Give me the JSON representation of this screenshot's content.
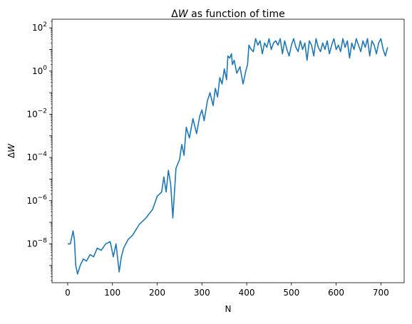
{
  "chart_data": {
    "type": "line",
    "title_prefix": "Δ",
    "title_var": "W",
    "title_suffix": " as function of time",
    "xlabel": "N",
    "ylabel_prefix": "Δ",
    "ylabel_var": "W",
    "xlim": [
      -35,
      752
    ],
    "ylim_exp": [
      -9.8,
      2.4
    ],
    "yscale": "log",
    "x_ticks": [
      0,
      100,
      200,
      300,
      400,
      500,
      600,
      700
    ],
    "y_tick_exponents": [
      -8,
      -6,
      -4,
      -2,
      0,
      2
    ],
    "grid": false,
    "legend": "none",
    "color": "#1f77b4",
    "series": [
      {
        "x": [
          0,
          6,
          12,
          15,
          18,
          22,
          28,
          35,
          42,
          50,
          58,
          66,
          75,
          85,
          95,
          102,
          108,
          115,
          120,
          125,
          135,
          145,
          160,
          175,
          190,
          200,
          210,
          215,
          220,
          225,
          230,
          235,
          242,
          250,
          255,
          260,
          265,
          272,
          280,
          288,
          295,
          300,
          305,
          312,
          318,
          325,
          330,
          335,
          340,
          345,
          350,
          355,
          358,
          362,
          366,
          368,
          372,
          378,
          385,
          392,
          398,
          402,
          405,
          410,
          415,
          420,
          425,
          430,
          435,
          440,
          445,
          450,
          455,
          460,
          465,
          470,
          475,
          480,
          485,
          490,
          495,
          500,
          505,
          510,
          515,
          520,
          525,
          530,
          535,
          540,
          545,
          550,
          555,
          560,
          565,
          570,
          575,
          580,
          585,
          590,
          595,
          600,
          605,
          610,
          615,
          620,
          625,
          630,
          635,
          640,
          645,
          650,
          655,
          660,
          665,
          670,
          675,
          680,
          685,
          690,
          695,
          700,
          705,
          710,
          715
        ],
        "y_exp": [
          -8.0,
          -8.0,
          -7.4,
          -7.8,
          -9.0,
          -9.4,
          -9.0,
          -8.7,
          -8.8,
          -8.5,
          -8.6,
          -8.2,
          -8.3,
          -8.0,
          -7.9,
          -8.6,
          -8.0,
          -9.3,
          -8.6,
          -8.2,
          -7.8,
          -7.6,
          -7.1,
          -6.8,
          -6.4,
          -5.8,
          -5.6,
          -4.9,
          -5.6,
          -4.6,
          -5.2,
          -6.8,
          -4.5,
          -4.1,
          -3.4,
          -3.9,
          -2.6,
          -3.1,
          -2.2,
          -2.9,
          -2.1,
          -1.8,
          -2.3,
          -1.4,
          -1.0,
          -1.6,
          -0.8,
          -1.2,
          -0.3,
          -0.6,
          0.1,
          -0.4,
          0.7,
          0.6,
          0.8,
          0.3,
          0.5,
          -0.1,
          0.2,
          -0.6,
          0.0,
          0.3,
          1.2,
          1.0,
          0.9,
          1.5,
          1.2,
          1.4,
          0.8,
          1.3,
          1.1,
          1.5,
          1.0,
          1.3,
          1.4,
          1.2,
          1.5,
          0.8,
          1.4,
          1.0,
          0.7,
          1.2,
          1.5,
          1.1,
          0.9,
          1.4,
          1.0,
          1.3,
          0.5,
          1.4,
          1.2,
          0.7,
          1.5,
          1.1,
          0.9,
          1.3,
          1.0,
          1.4,
          0.8,
          1.2,
          1.5,
          1.0,
          1.2,
          0.9,
          1.5,
          1.1,
          1.4,
          0.6,
          1.3,
          1.0,
          1.5,
          1.2,
          0.9,
          1.4,
          1.1,
          1.5,
          0.7,
          1.4,
          1.2,
          0.8,
          1.3,
          1.5,
          1.0,
          0.7,
          1.1
        ]
      }
    ]
  }
}
